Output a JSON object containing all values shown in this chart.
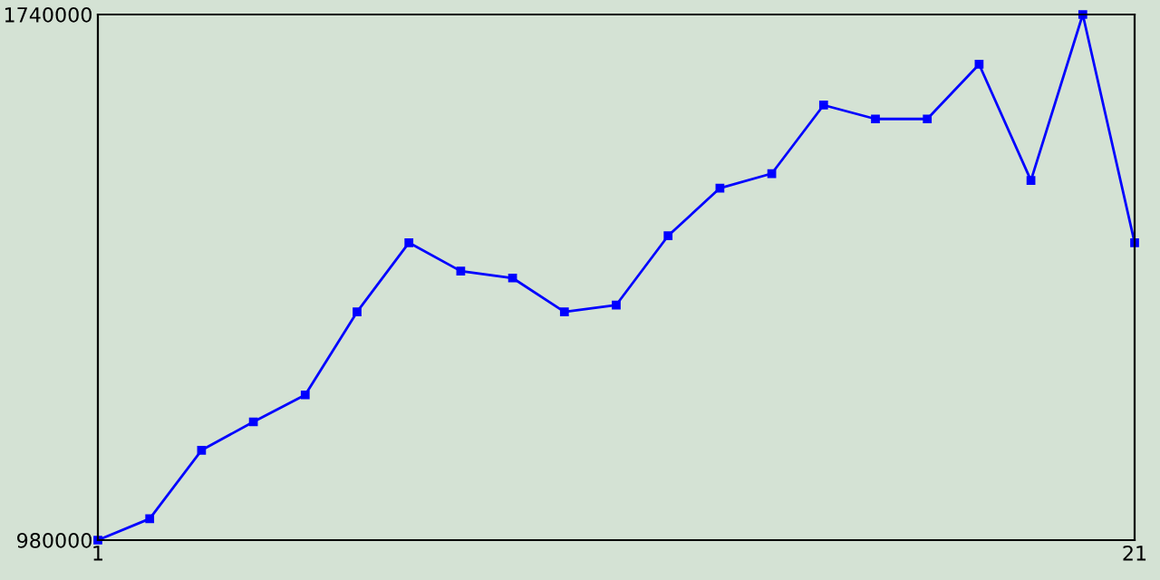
{
  "chart_data": {
    "type": "line",
    "x": [
      1,
      2,
      3,
      4,
      5,
      6,
      7,
      8,
      9,
      10,
      11,
      12,
      13,
      14,
      15,
      16,
      17,
      18,
      19,
      20,
      21
    ],
    "series": [
      {
        "color": "#0000ff",
        "values": [
          980000,
          1011000,
          1110000,
          1151000,
          1190000,
          1310000,
          1410000,
          1369000,
          1359000,
          1310000,
          1320000,
          1420000,
          1489000,
          1510000,
          1609000,
          1589000,
          1589000,
          1668000,
          1500000,
          1740000,
          1410000
        ]
      }
    ],
    "xlim": [
      1,
      21
    ],
    "ylim": [
      980000,
      1740000
    ],
    "xticks": [
      1,
      21
    ],
    "yticks": [
      980000,
      1740000
    ],
    "grid": false,
    "legend": false,
    "marker": "square",
    "line_style": "solid"
  }
}
